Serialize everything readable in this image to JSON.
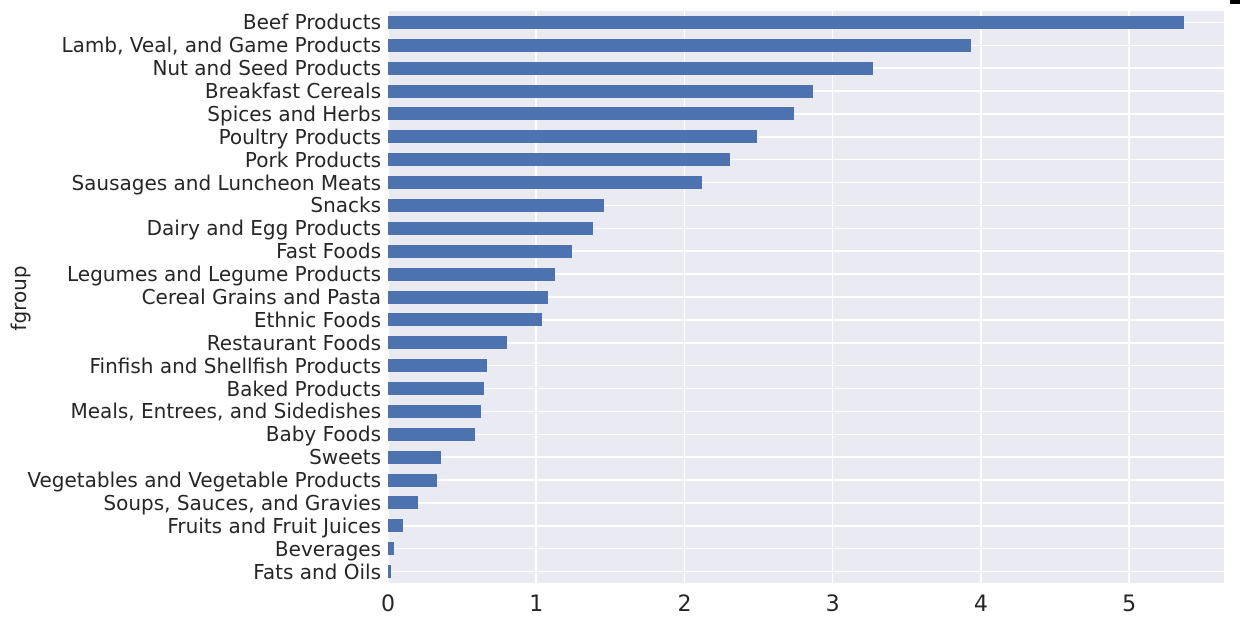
{
  "chart_data": {
    "type": "bar",
    "orientation": "horizontal",
    "title": "",
    "xlabel": "",
    "ylabel": "fgroup",
    "categories": [
      "Beef Products",
      "Lamb, Veal, and Game Products",
      "Nut and Seed Products",
      "Breakfast Cereals",
      "Spices and Herbs",
      "Poultry Products",
      "Pork Products",
      "Sausages and Luncheon Meats",
      "Snacks",
      "Dairy and Egg Products",
      "Fast Foods",
      "Legumes and Legume Products",
      "Cereal Grains and Pasta",
      "Ethnic Foods",
      "Restaurant Foods",
      "Finfish and Shellfish Products",
      "Baked Products",
      "Meals, Entrees, and Sidedishes",
      "Baby Foods",
      "Sweets",
      "Vegetables and Vegetable Products",
      "Soups, Sauces, and Gravies",
      "Fruits and Fruit Juices",
      "Beverages",
      "Fats and Oils"
    ],
    "values": [
      5.37,
      3.93,
      3.27,
      2.87,
      2.74,
      2.49,
      2.31,
      2.12,
      1.46,
      1.38,
      1.24,
      1.13,
      1.08,
      1.04,
      0.8,
      0.67,
      0.65,
      0.63,
      0.59,
      0.36,
      0.33,
      0.2,
      0.1,
      0.04,
      0.02
    ],
    "x_ticks": [
      0,
      1,
      2,
      3,
      4,
      5
    ],
    "x_tick_labels": [
      "0",
      "1",
      "2",
      "3",
      "4",
      "5"
    ],
    "xlim": [
      0,
      5.64
    ],
    "grid": true,
    "legend": false,
    "legend_position": "none",
    "bar_color": "#4c72b0",
    "plot_background": "#eaeaf2",
    "grid_color": "#ffffff",
    "text_color": "#262626",
    "figure_background": "#ffffff"
  }
}
